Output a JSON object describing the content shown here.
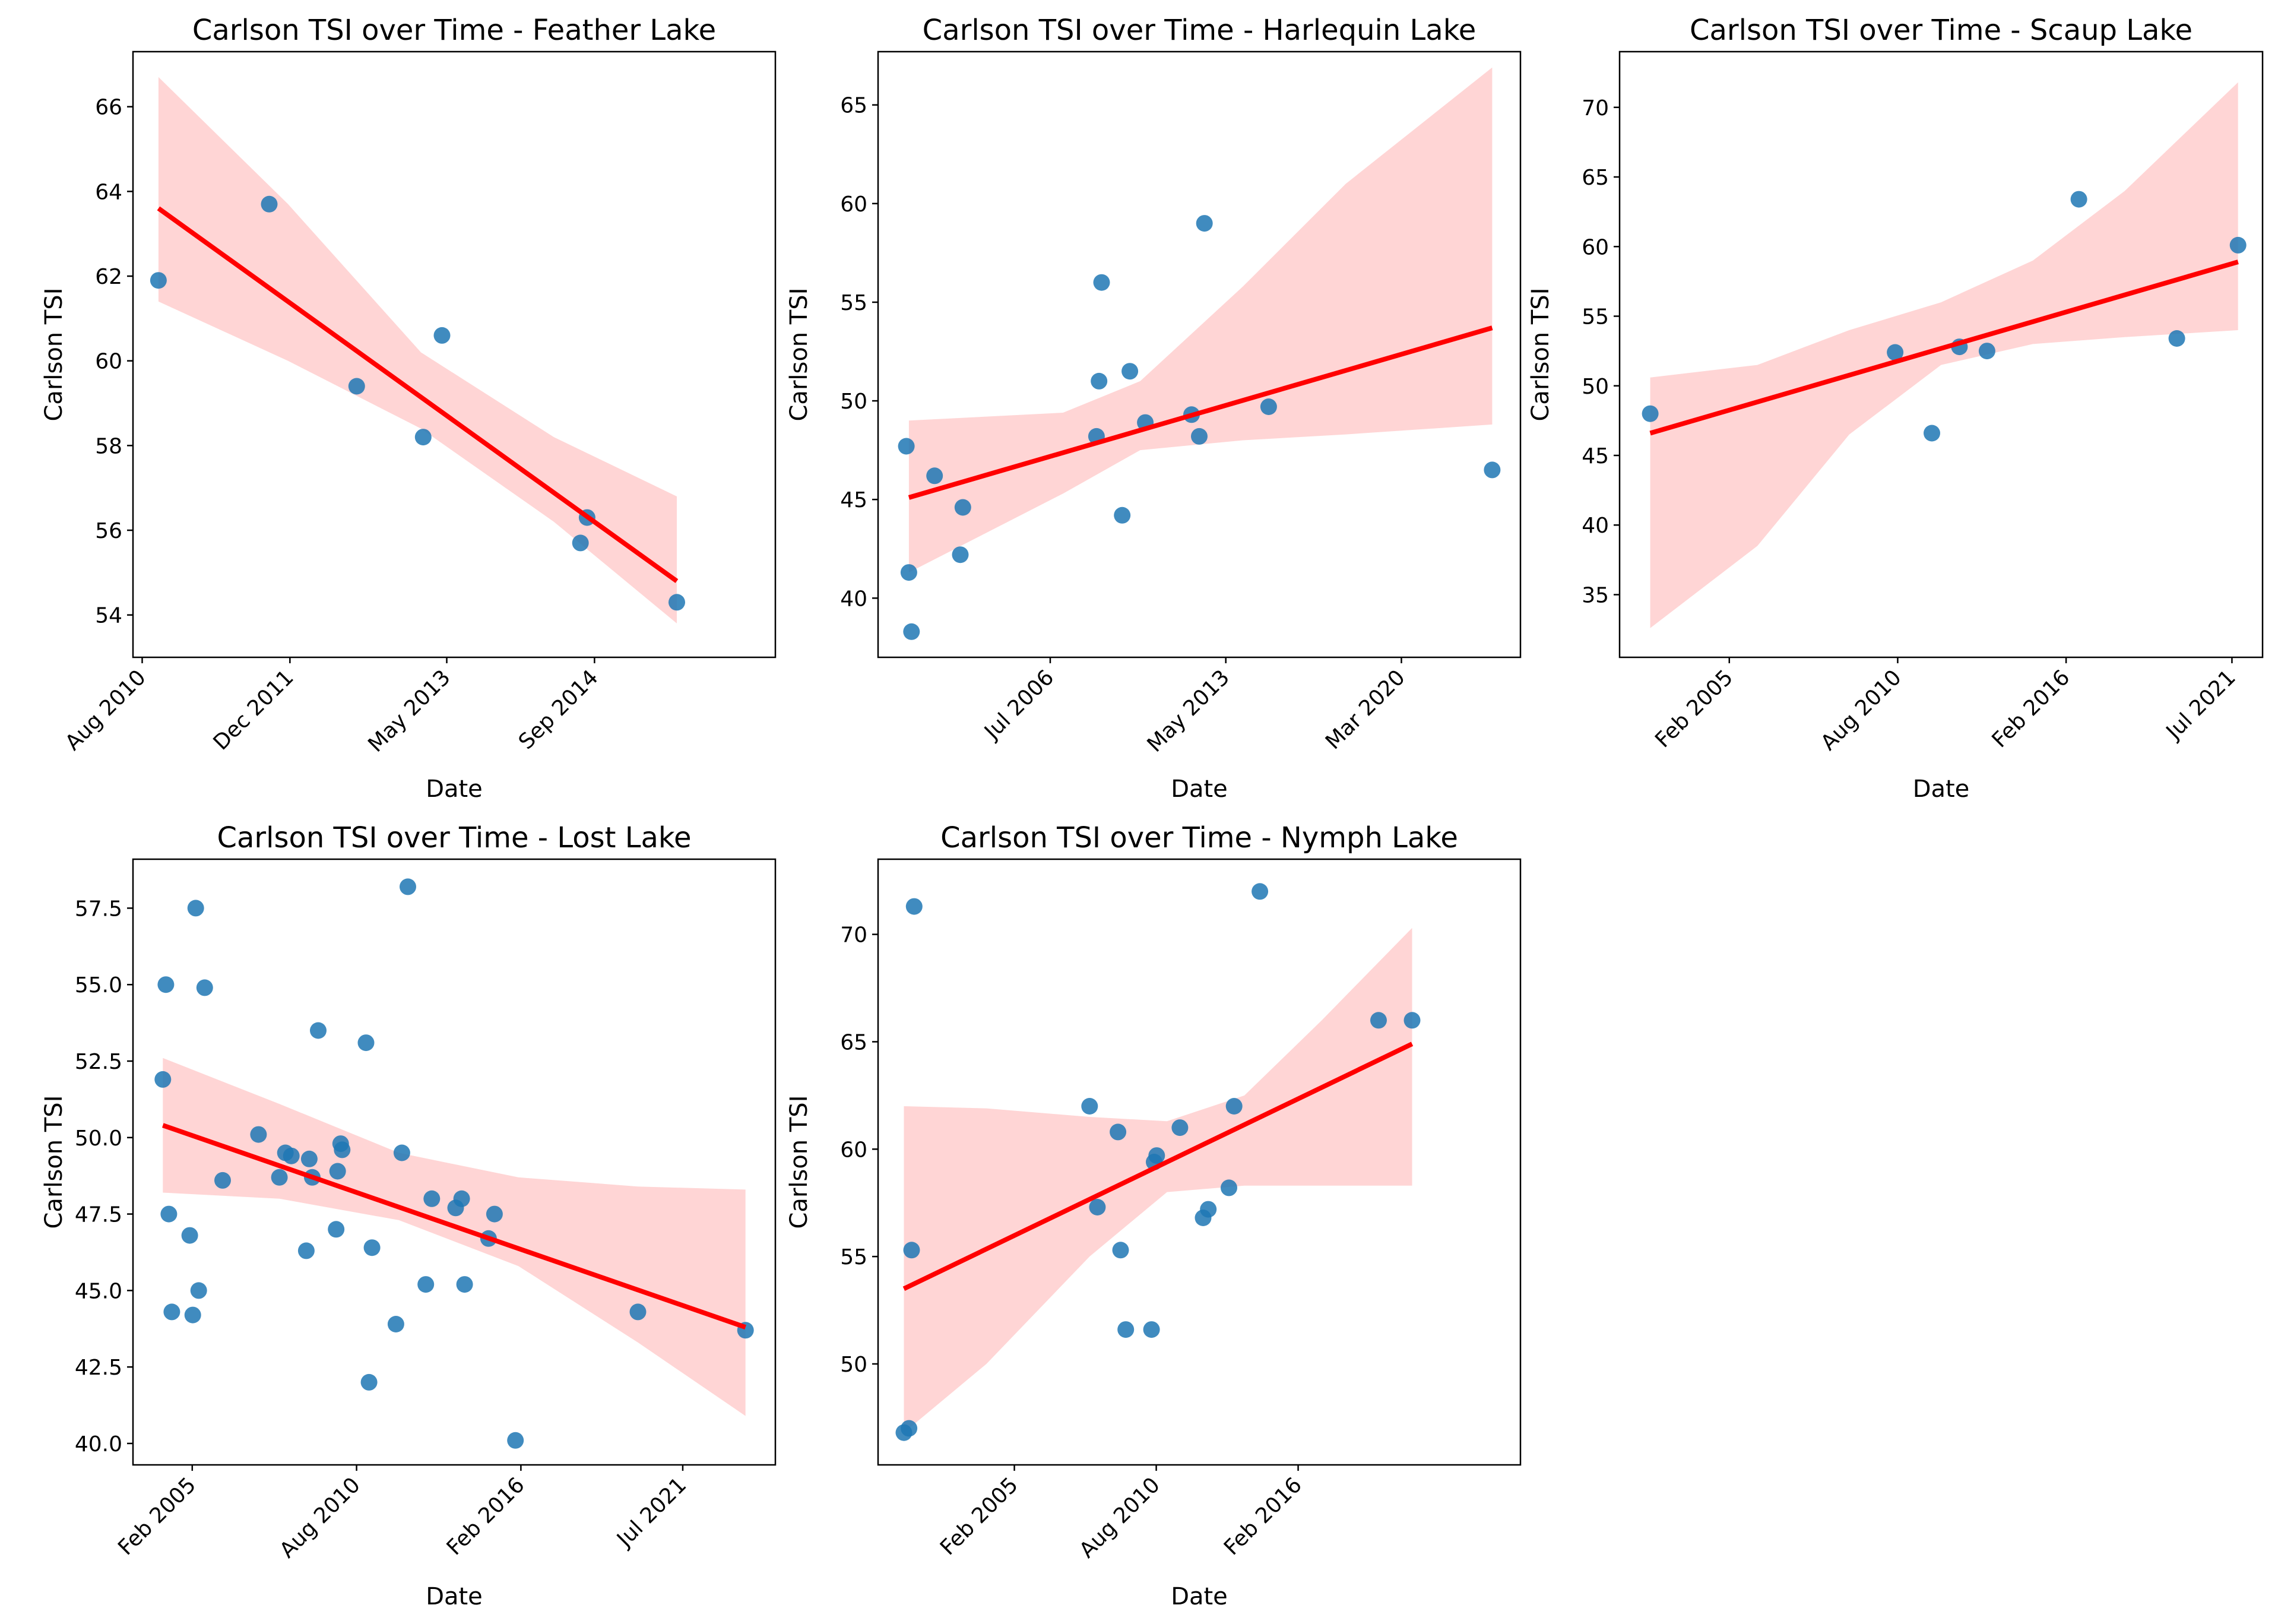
{
  "figure": {
    "background": "#ffffff"
  },
  "style": {
    "point_color": "#1f77b4",
    "line_color": "#ff0000",
    "band_color": "#ffb3b3"
  },
  "chart_data": [
    {
      "type": "scatter",
      "title": "Carlson TSI over Time - Feather Lake",
      "xlabel": "Date",
      "ylabel": "Carlson TSI",
      "xlim": [
        2010.5,
        2016.3
      ],
      "ylim": [
        53.0,
        67.3
      ],
      "xticks": [
        2010.583,
        2011.917,
        2013.333,
        2014.667
      ],
      "xticklabels": [
        "Aug 2010",
        "Dec 2011",
        "May 2013",
        "Sep 2014"
      ],
      "yticks": [
        54,
        56,
        58,
        60,
        62,
        64,
        66
      ],
      "yticklabels": [
        "54",
        "56",
        "58",
        "60",
        "62",
        "64",
        "66"
      ],
      "points": {
        "x": [
          2010.73,
          2011.73,
          2012.52,
          2013.12,
          2013.29,
          2014.54,
          2014.6,
          2015.41
        ],
        "y": [
          61.9,
          63.7,
          59.4,
          58.2,
          60.6,
          55.7,
          56.3,
          54.3
        ]
      },
      "fit": {
        "x": [
          2010.73,
          2015.41
        ],
        "y": [
          63.6,
          54.8
        ]
      },
      "band": {
        "x": [
          2010.73,
          2011.9,
          2013.1,
          2014.3,
          2015.41
        ],
        "lower": [
          61.4,
          60.0,
          58.4,
          56.2,
          53.8
        ],
        "upper": [
          66.7,
          63.7,
          60.2,
          58.2,
          56.8
        ]
      }
    },
    {
      "type": "scatter",
      "title": "Carlson TSI over Time - Harlequin Lake",
      "xlabel": "Date",
      "ylabel": "Carlson TSI",
      "xlim": [
        1999.8,
        2024.8
      ],
      "ylim": [
        37.0,
        67.7
      ],
      "xticks": [
        2006.5,
        2013.333,
        2020.167
      ],
      "xticklabels": [
        "Jul 2006",
        "May 2013",
        "Mar 2020"
      ],
      "yticks": [
        40,
        45,
        50,
        55,
        60,
        65
      ],
      "yticklabels": [
        "40",
        "45",
        "50",
        "55",
        "60",
        "65"
      ],
      "points": {
        "x": [
          2000.9,
          2001.0,
          2001.1,
          2002.0,
          2003.0,
          2003.1,
          2008.3,
          2008.4,
          2008.5,
          2009.3,
          2009.6,
          2010.2,
          2012.0,
          2012.3,
          2012.5,
          2015.0,
          2023.7
        ],
        "y": [
          47.7,
          41.3,
          38.3,
          46.2,
          42.2,
          44.6,
          48.2,
          51.0,
          56.0,
          44.2,
          51.5,
          48.9,
          49.3,
          48.2,
          59.0,
          49.7,
          46.5
        ]
      },
      "fit": {
        "x": [
          2001.0,
          2023.7
        ],
        "y": [
          45.1,
          53.7
        ]
      },
      "band": {
        "x": [
          2001.0,
          2007.0,
          2010.0,
          2014.0,
          2018.0,
          2023.7
        ],
        "lower": [
          41.3,
          45.3,
          47.5,
          48.0,
          48.3,
          48.8
        ],
        "upper": [
          49.0,
          49.4,
          51.0,
          55.8,
          61.0,
          66.9
        ]
      }
    },
    {
      "type": "scatter",
      "title": "Carlson TSI over Time - Scaup Lake",
      "xlabel": "Date",
      "ylabel": "Carlson TSI",
      "xlim": [
        2001.5,
        2022.5
      ],
      "ylim": [
        30.5,
        74.0
      ],
      "xticks": [
        2005.083,
        2010.583,
        2016.083,
        2021.5
      ],
      "xticklabels": [
        "Feb 2005",
        "Aug 2010",
        "Feb 2016",
        "Jul 2021"
      ],
      "yticks": [
        35,
        40,
        45,
        50,
        55,
        60,
        65,
        70
      ],
      "yticklabels": [
        "35",
        "40",
        "45",
        "50",
        "55",
        "60",
        "65",
        "70"
      ],
      "points": {
        "x": [
          2002.5,
          2010.5,
          2011.7,
          2012.6,
          2013.5,
          2016.5,
          2019.7,
          2021.7
        ],
        "y": [
          48.0,
          52.4,
          46.6,
          52.8,
          52.5,
          63.4,
          53.4,
          60.1
        ]
      },
      "fit": {
        "x": [
          2002.5,
          2021.7
        ],
        "y": [
          46.6,
          58.9
        ]
      },
      "band": {
        "x": [
          2002.5,
          2006.0,
          2009.0,
          2012.0,
          2015.0,
          2018.0,
          2021.7
        ],
        "lower": [
          32.6,
          38.5,
          46.5,
          51.5,
          53.0,
          53.5,
          54.0
        ],
        "upper": [
          50.6,
          51.5,
          54.0,
          56.0,
          59.0,
          64.0,
          71.8
        ]
      }
    },
    {
      "type": "scatter",
      "title": "Carlson TSI over Time - Lost Lake",
      "xlabel": "Date",
      "ylabel": "Carlson TSI",
      "xlim": [
        2003.1,
        2024.6
      ],
      "ylim": [
        39.3,
        59.1
      ],
      "xticks": [
        2005.083,
        2010.583,
        2016.083,
        2021.5
      ],
      "xticklabels": [
        "Feb 2005",
        "Aug 2010",
        "Feb 2016",
        "Jul 2021"
      ],
      "yticks": [
        40.0,
        42.5,
        45.0,
        47.5,
        50.0,
        52.5,
        55.0,
        57.5
      ],
      "yticklabels": [
        "40.0",
        "42.5",
        "45.0",
        "47.5",
        "50.0",
        "52.5",
        "55.0",
        "57.5"
      ],
      "points": {
        "x": [
          2004.1,
          2004.2,
          2004.3,
          2004.4,
          2005.0,
          2005.1,
          2005.2,
          2005.3,
          2005.5,
          2006.1,
          2007.3,
          2008.0,
          2008.2,
          2008.4,
          2008.9,
          2009.0,
          2009.1,
          2009.3,
          2009.9,
          2009.95,
          2010.05,
          2010.1,
          2010.9,
          2011.0,
          2011.1,
          2011.9,
          2012.1,
          2012.3,
          2012.9,
          2013.1,
          2013.9,
          2014.1,
          2014.2,
          2015.0,
          2015.2,
          2015.9,
          2020.0,
          2023.6
        ],
        "y": [
          51.9,
          55.0,
          47.5,
          44.3,
          46.8,
          44.2,
          57.5,
          45.0,
          54.9,
          48.6,
          50.1,
          48.7,
          49.5,
          49.4,
          46.3,
          49.3,
          48.7,
          53.5,
          47.0,
          48.9,
          49.8,
          49.6,
          53.1,
          42.0,
          46.4,
          43.9,
          49.5,
          58.2,
          45.2,
          48.0,
          47.7,
          48.0,
          45.2,
          46.7,
          47.5,
          40.1,
          44.3,
          43.7
        ]
      },
      "fit": {
        "x": [
          2004.1,
          2023.6
        ],
        "y": [
          50.4,
          43.8
        ]
      },
      "band": {
        "x": [
          2004.1,
          2008.0,
          2012.0,
          2016.0,
          2020.0,
          2023.6
        ],
        "lower": [
          48.2,
          48.0,
          47.3,
          45.8,
          43.3,
          40.9
        ],
        "upper": [
          52.6,
          51.1,
          49.5,
          48.7,
          48.4,
          48.3
        ]
      }
    },
    {
      "type": "scatter",
      "title": "Carlson TSI over Time - Nymph Lake",
      "xlabel": "Date",
      "ylabel": "Carlson TSI",
      "xlim": [
        1999.8,
        2024.7
      ],
      "ylim": [
        45.3,
        73.5
      ],
      "xticks": [
        2005.083,
        2010.583,
        2016.083
      ],
      "xticklabels": [
        "Feb 2005",
        "Aug 2010",
        "Feb 2016"
      ],
      "yticks": [
        50,
        55,
        60,
        65,
        70
      ],
      "yticklabels": [
        "50",
        "55",
        "60",
        "65",
        "70"
      ],
      "points": {
        "x": [
          2000.8,
          2001.0,
          2001.1,
          2001.2,
          2008.0,
          2008.3,
          2009.1,
          2009.2,
          2009.4,
          2010.4,
          2010.5,
          2010.6,
          2011.5,
          2012.4,
          2012.6,
          2013.4,
          2013.6,
          2014.6,
          2019.2,
          2020.5
        ],
        "y": [
          46.8,
          47.0,
          55.3,
          71.3,
          62.0,
          57.3,
          60.8,
          55.3,
          51.6,
          51.6,
          59.4,
          59.7,
          61.0,
          56.8,
          57.2,
          58.2,
          62.0,
          72.0,
          66.0,
          66.0
        ]
      },
      "fit": {
        "x": [
          2000.8,
          2020.5
        ],
        "y": [
          53.5,
          64.9
        ]
      },
      "band": {
        "x": [
          2000.8,
          2004.0,
          2008.0,
          2011.0,
          2014.0,
          2017.0,
          2020.5
        ],
        "lower": [
          46.8,
          50.0,
          55.0,
          58.0,
          58.3,
          58.3,
          58.3
        ],
        "upper": [
          62.0,
          61.9,
          61.5,
          61.3,
          62.5,
          66.0,
          70.3
        ]
      }
    }
  ]
}
